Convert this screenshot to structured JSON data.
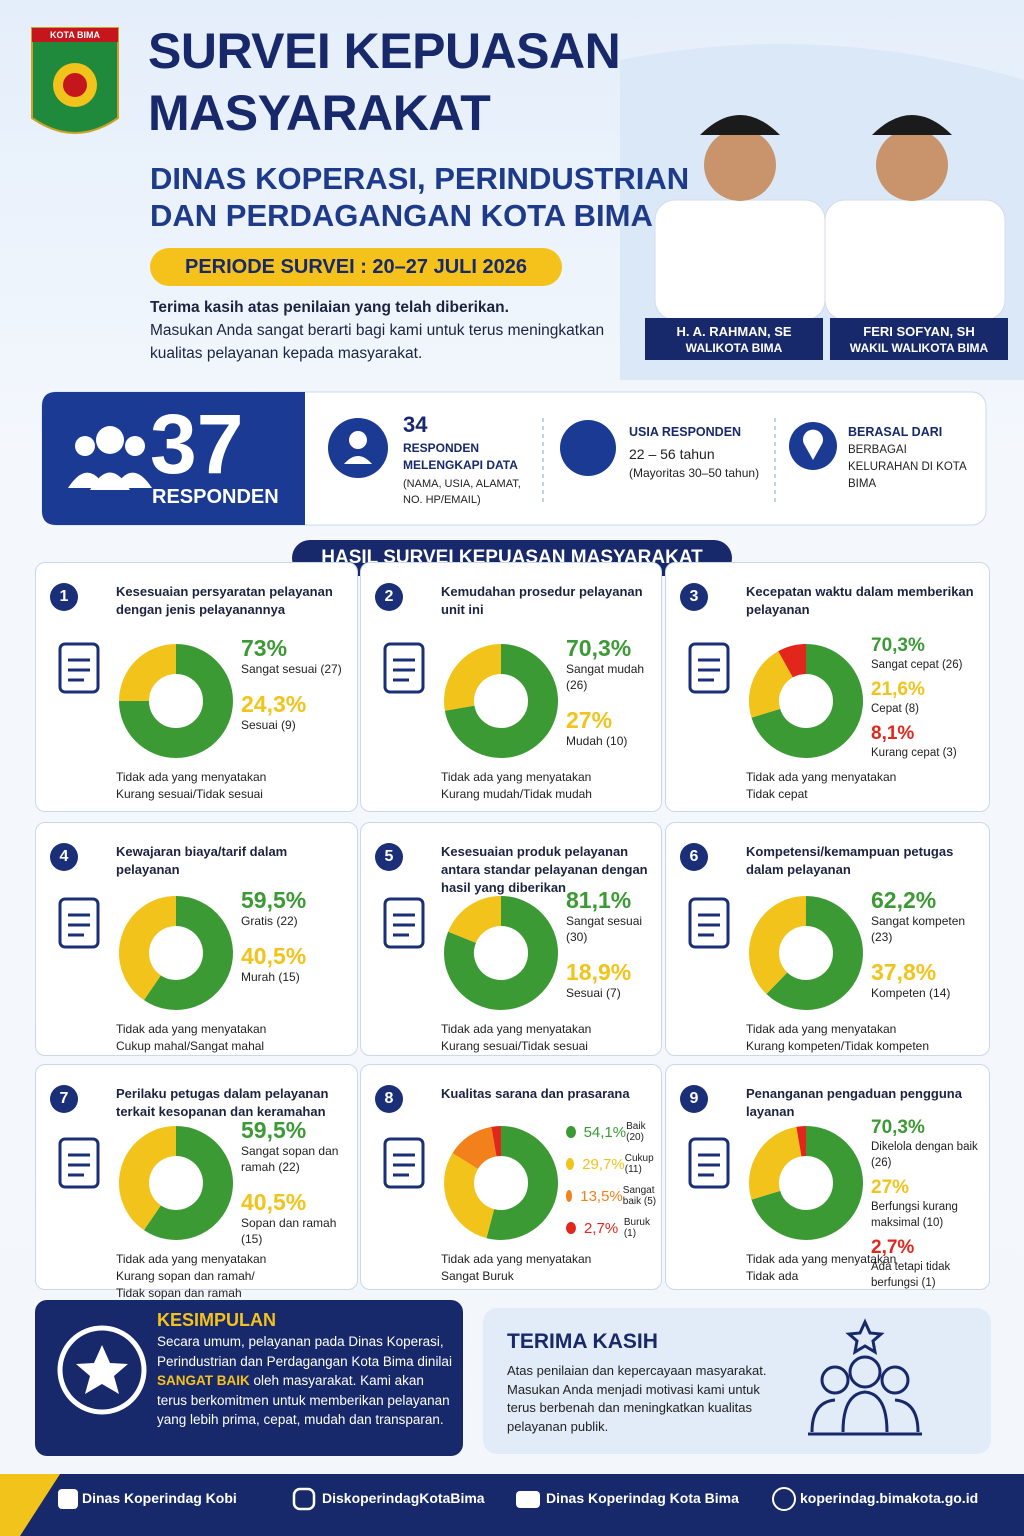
{
  "header": {
    "logo_text": "KOTA BIMA",
    "title_line1": "SURVEI KEPUASAN",
    "title_line2": "MASYARAKAT",
    "subtitle_line1": "DINAS KOPERASI, PERINDUSTRIAN",
    "subtitle_line2": "DAN PERDAGANGAN KOTA BIMA",
    "period": "PERIODE SURVEI : 20–27 JULI 2026",
    "intro_bold": "Terima kasih atas penilaian yang telah diberikan.",
    "intro": "Masukan Anda sangat berarti bagi kami untuk terus meningkatkan kualitas pelayanan kepada masyarakat."
  },
  "officials": [
    {
      "name": "H. A. RAHMAN, SE",
      "role": "WALIKOTA BIMA"
    },
    {
      "name": "FERI SOFYAN, SH",
      "role": "WAKIL WALIKOTA BIMA"
    }
  ],
  "stats": {
    "total": 37,
    "total_label": "RESPONDEN",
    "complete_count": 34,
    "complete_label": "RESPONDEN MELENGKAPI DATA",
    "complete_note": "(NAMA, USIA, ALAMAT, NO. HP/EMAIL)",
    "age_title": "USIA RESPONDEN",
    "age_range": "22 – 56 tahun",
    "age_note": "(Mayoritas 30–50 tahun)",
    "origin_title": "BERASAL DARI",
    "origin_text": "BERBAGAI KELURAHAN DI KOTA BIMA"
  },
  "results_title": "HASIL SURVEI KEPUASAN MASYARAKAT",
  "questions": [
    {
      "number": "1",
      "title": "Kesesuaian persyaratan pelayanan dengan jenis pelayanannya",
      "segments": [
        {
          "value": 73,
          "label": "73%",
          "name": "Sangat sesuai (27)",
          "color": "#3c9a35"
        },
        {
          "value": 24.3,
          "label": "24,3%",
          "name": "Sesuai (9)",
          "color": "#f2c31b"
        }
      ],
      "note": [
        "Tidak ada yang menyatakan",
        "Kurang sesuai/Tidak sesuai"
      ]
    },
    {
      "number": "2",
      "title": "Kemudahan prosedur pelayanan unit ini",
      "segments": [
        {
          "value": 70.3,
          "label": "70,3%",
          "name": "Sangat mudah (26)",
          "color": "#3c9a35"
        },
        {
          "value": 27,
          "label": "27%",
          "name": "Mudah (10)",
          "color": "#f2c31b"
        }
      ],
      "note": [
        "Tidak ada yang menyatakan",
        "Kurang mudah/Tidak mudah"
      ]
    },
    {
      "number": "3",
      "title": "Kecepatan waktu dalam memberikan pelayanan",
      "segments": [
        {
          "value": 70.3,
          "label": "70,3%",
          "name": "Sangat cepat (26)",
          "color": "#3c9a35"
        },
        {
          "value": 21.6,
          "label": "21,6%",
          "name": "Cepat (8)",
          "color": "#f2c31b"
        },
        {
          "value": 8.1,
          "label": "8,1%",
          "name": "Kurang cepat (3)",
          "color": "#e2261c"
        }
      ],
      "note": [
        "Tidak ada yang menyatakan",
        "Tidak cepat"
      ]
    },
    {
      "number": "4",
      "title": "Kewajaran biaya/tarif dalam pelayanan",
      "segments": [
        {
          "value": 59.5,
          "label": "59,5%",
          "name": "Gratis (22)",
          "color": "#3c9a35"
        },
        {
          "value": 40.5,
          "label": "40,5%",
          "name": "Murah (15)",
          "color": "#f2c31b"
        }
      ],
      "note": [
        "Tidak ada yang menyatakan",
        "Cukup mahal/Sangat mahal"
      ]
    },
    {
      "number": "5",
      "title": "Kesesuaian produk pelayanan antara standar pelayanan dengan hasil yang diberikan",
      "segments": [
        {
          "value": 81.1,
          "label": "81,1%",
          "name": "Sangat sesuai (30)",
          "color": "#3c9a35"
        },
        {
          "value": 18.9,
          "label": "18,9%",
          "name": "Sesuai (7)",
          "color": "#f2c31b"
        }
      ],
      "note": [
        "Tidak ada yang menyatakan",
        "Kurang sesuai/Tidak sesuai"
      ]
    },
    {
      "number": "6",
      "title": "Kompetensi/kemampuan petugas dalam pelayanan",
      "segments": [
        {
          "value": 62.2,
          "label": "62,2%",
          "name": "Sangat kompeten (23)",
          "color": "#3c9a35"
        },
        {
          "value": 37.8,
          "label": "37,8%",
          "name": "Kompeten (14)",
          "color": "#f2c31b"
        }
      ],
      "note": [
        "Tidak ada yang menyatakan",
        "Kurang kompeten/Tidak kompeten"
      ]
    },
    {
      "number": "7",
      "title": "Perilaku petugas dalam pelayanan terkait kesopanan dan keramahan",
      "segments": [
        {
          "value": 59.5,
          "label": "59,5%",
          "name": "Sangat sopan dan ramah (22)",
          "color": "#3c9a35"
        },
        {
          "value": 40.5,
          "label": "40,5%",
          "name": "Sopan dan ramah (15)",
          "color": "#f2c31b"
        }
      ],
      "note": [
        "Tidak ada yang menyatakan",
        "Kurang sopan dan ramah/",
        "Tidak sopan dan ramah"
      ]
    },
    {
      "number": "8",
      "title": "Kualitas sarana dan prasarana",
      "segments": [
        {
          "value": 54.1,
          "label": "54,1%",
          "name": "Baik (20)",
          "color": "#3c9a35"
        },
        {
          "value": 29.7,
          "label": "29,7%",
          "name": "Cukup (11)",
          "color": "#f2c31b"
        },
        {
          "value": 13.5,
          "label": "13,5%",
          "name": "Sangat baik (5)",
          "color": "#f2801b"
        },
        {
          "value": 2.7,
          "label": "2,7%",
          "name": "Buruk (1)",
          "color": "#e2261c"
        }
      ],
      "note": [
        "Tidak ada yang menyatakan",
        "Sangat Buruk"
      ]
    },
    {
      "number": "9",
      "title": "Penanganan pengaduan pengguna layanan",
      "segments": [
        {
          "value": 70.3,
          "label": "70,3%",
          "name": "Dikelola dengan baik (26)",
          "color": "#3c9a35"
        },
        {
          "value": 27,
          "label": "27%",
          "name": "Berfungsi kurang maksimal (10)",
          "color": "#f2c31b"
        },
        {
          "value": 2.7,
          "label": "2,7%",
          "name": "Ada tetapi tidak berfungsi (1)",
          "color": "#e2261c"
        }
      ],
      "note": [
        "Tidak ada yang menyatakan",
        "Tidak ada"
      ]
    }
  ],
  "conclusion": {
    "title": "KESIMPULAN",
    "text_before": "Secara umum, pelayanan pada Dinas Koperasi, Perindustrian dan Perdagangan Kota Bima dinilai",
    "highlight": "SANGAT BAIK",
    "text_after": "oleh masyarakat. Kami akan terus berkomitmen untuk memberikan pelayanan yang lebih prima, cepat, mudah dan transparan."
  },
  "thanks": {
    "title": "TERIMA KASIH",
    "text": "Atas penilaian dan kepercayaan masyarakat. Masukan Anda menjadi motivasi kami untuk terus berbenah dan meningkatkan kualitas pelayanan publik."
  },
  "footer": [
    "Dinas Koperindag Kobi",
    "DiskoperindagKotaBima",
    "Dinas Koperindag Kota Bima",
    "koperindag.bimakota.go.id"
  ]
}
